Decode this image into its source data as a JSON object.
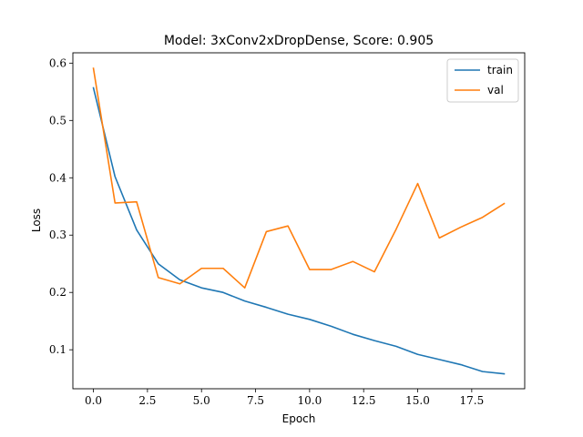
{
  "chart_data": {
    "type": "line",
    "title": "Model: 3xConv2xDropDense, Score: 0.905",
    "xlabel": "Epoch",
    "ylabel": "Loss",
    "xlim": [
      -0.95,
      19.95
    ],
    "ylim": [
      0.032,
      0.618
    ],
    "xticks": [
      0.0,
      2.5,
      5.0,
      7.5,
      10.0,
      12.5,
      15.0,
      17.5
    ],
    "xtick_labels": [
      "0.0",
      "2.5",
      "5.0",
      "7.5",
      "10.0",
      "12.5",
      "15.0",
      "17.5"
    ],
    "yticks": [
      0.1,
      0.2,
      0.3,
      0.4,
      0.5,
      0.6
    ],
    "ytick_labels": [
      "0.1",
      "0.2",
      "0.3",
      "0.4",
      "0.5",
      "0.6"
    ],
    "grid": false,
    "legend_position": "top-right",
    "x": [
      0,
      1,
      2,
      3,
      4,
      5,
      6,
      7,
      8,
      9,
      10,
      11,
      12,
      13,
      14,
      15,
      16,
      17,
      18,
      19
    ],
    "series": [
      {
        "name": "train",
        "color": "#1f77b4",
        "values": [
          0.557,
          0.402,
          0.309,
          0.25,
          0.222,
          0.208,
          0.2,
          0.185,
          0.174,
          0.162,
          0.153,
          0.141,
          0.127,
          0.116,
          0.106,
          0.092,
          0.083,
          0.074,
          0.062,
          0.058
        ]
      },
      {
        "name": "val",
        "color": "#ff7f0e",
        "values": [
          0.591,
          0.356,
          0.358,
          0.226,
          0.215,
          0.242,
          0.242,
          0.208,
          0.306,
          0.316,
          0.24,
          0.24,
          0.254,
          0.236,
          0.31,
          0.39,
          0.295,
          0.314,
          0.331,
          0.355
        ]
      }
    ]
  }
}
